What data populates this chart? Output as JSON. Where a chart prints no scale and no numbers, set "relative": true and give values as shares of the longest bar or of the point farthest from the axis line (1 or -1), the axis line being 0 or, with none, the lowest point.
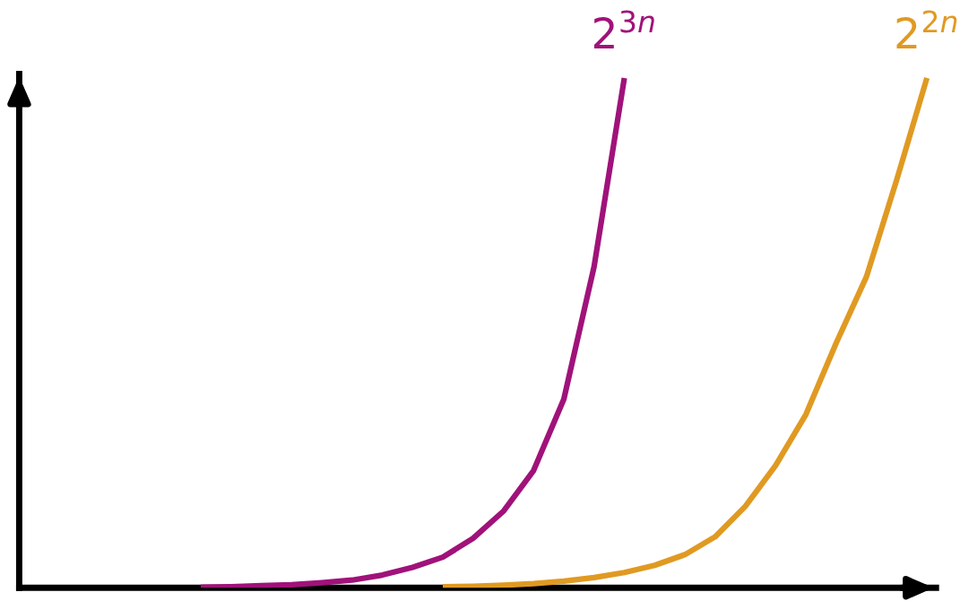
{
  "chart_data": {
    "type": "line",
    "relative": true,
    "categories": [
      null,
      null,
      null,
      null,
      null,
      null,
      null,
      null,
      null,
      null,
      null,
      null,
      null,
      null,
      null,
      null,
      null,
      null,
      null,
      null,
      null,
      null,
      null,
      null,
      null,
      null,
      null,
      null,
      null,
      null,
      null
    ],
    "series": [
      {
        "name": "2$^{3n}$",
        "color": "#a0127a",
        "values": [
          null,
          null,
          null,
          null,
          null,
          null,
          0.001,
          0.002,
          0.004,
          0.006,
          0.01,
          0.015,
          0.025,
          0.04,
          0.06,
          0.097,
          0.15,
          0.23,
          0.37,
          0.63,
          1.0,
          null,
          null,
          null,
          null,
          null,
          null,
          null,
          null,
          null,
          null
        ]
      },
      {
        "name": "2$^{2n}$",
        "color": "#e09a22",
        "values": [
          null,
          null,
          null,
          null,
          null,
          null,
          null,
          null,
          null,
          null,
          null,
          null,
          null,
          null,
          0.002,
          0.003,
          0.005,
          0.008,
          0.013,
          0.02,
          0.03,
          0.044,
          0.065,
          0.1,
          0.16,
          0.24,
          0.34,
          0.48,
          0.61,
          0.8,
          1.0
        ]
      }
    ],
    "grid": false,
    "legend": false,
    "marker": "none",
    "line_style": "solid"
  }
}
